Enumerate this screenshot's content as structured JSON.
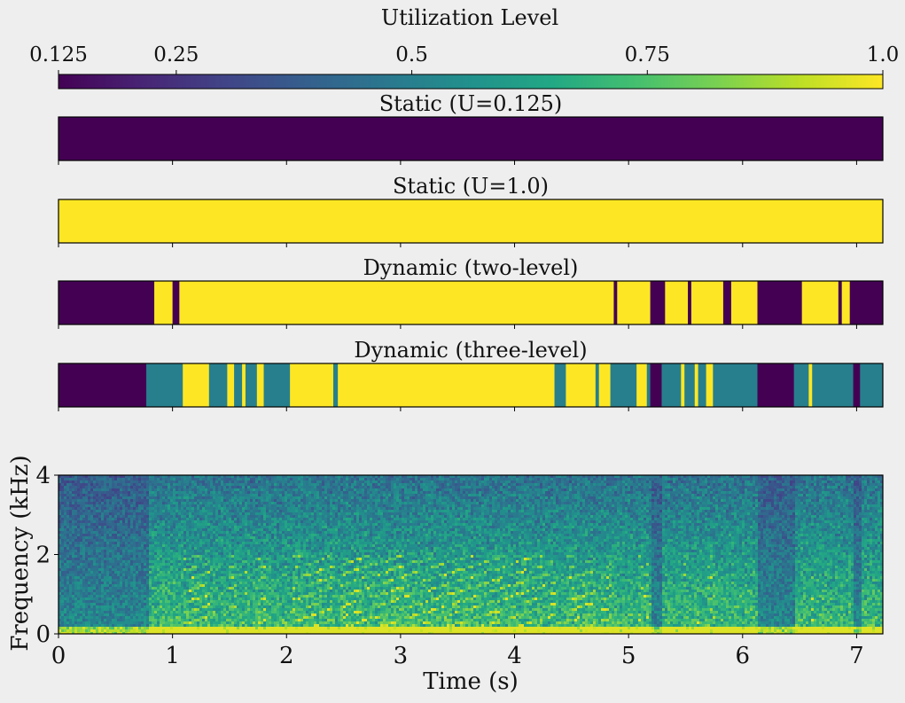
{
  "chart_data": [
    {
      "type": "colorbar",
      "title": "Utilization Level",
      "range": [
        0.125,
        1.0
      ],
      "ticks": [
        0.125,
        0.25,
        0.5,
        0.75,
        1.0
      ],
      "tick_labels": [
        "0.125",
        "0.25",
        "0.5",
        "0.75",
        "1.0"
      ],
      "colormap": "viridis"
    },
    {
      "type": "heatmap",
      "title": "Static (U=0.125)",
      "xlim": [
        0,
        7.23
      ],
      "segments": [
        {
          "start": 0,
          "end": 7.23,
          "value": 0.125
        }
      ]
    },
    {
      "type": "heatmap",
      "title": "Static (U=1.0)",
      "xlim": [
        0,
        7.23
      ],
      "segments": [
        {
          "start": 0,
          "end": 7.23,
          "value": 1.0
        }
      ]
    },
    {
      "type": "heatmap",
      "title": "Dynamic (two-level)",
      "xlim": [
        0,
        7.23
      ],
      "segments": [
        {
          "start": 0,
          "end": 0.84,
          "value": 0.125
        },
        {
          "start": 0.84,
          "end": 1.0,
          "value": 1.0
        },
        {
          "start": 1.0,
          "end": 1.06,
          "value": 0.125
        },
        {
          "start": 1.06,
          "end": 4.87,
          "value": 1.0
        },
        {
          "start": 4.87,
          "end": 4.9,
          "value": 0.125
        },
        {
          "start": 4.9,
          "end": 5.19,
          "value": 1.0
        },
        {
          "start": 5.19,
          "end": 5.32,
          "value": 0.125
        },
        {
          "start": 5.32,
          "end": 5.52,
          "value": 1.0
        },
        {
          "start": 5.52,
          "end": 5.55,
          "value": 0.125
        },
        {
          "start": 5.55,
          "end": 5.83,
          "value": 1.0
        },
        {
          "start": 5.83,
          "end": 5.9,
          "value": 0.125
        },
        {
          "start": 5.9,
          "end": 6.13,
          "value": 1.0
        },
        {
          "start": 6.13,
          "end": 6.52,
          "value": 0.125
        },
        {
          "start": 6.52,
          "end": 6.84,
          "value": 1.0
        },
        {
          "start": 6.84,
          "end": 6.87,
          "value": 0.125
        },
        {
          "start": 6.87,
          "end": 6.94,
          "value": 1.0
        },
        {
          "start": 6.94,
          "end": 7.23,
          "value": 0.125
        }
      ]
    },
    {
      "type": "heatmap",
      "title": "Dynamic (three-level)",
      "xlim": [
        0,
        7.23
      ],
      "segments": [
        {
          "start": 0,
          "end": 0.77,
          "value": 0.125
        },
        {
          "start": 0.77,
          "end": 1.09,
          "value": 0.5
        },
        {
          "start": 1.09,
          "end": 1.32,
          "value": 1.0
        },
        {
          "start": 1.32,
          "end": 1.48,
          "value": 0.5
        },
        {
          "start": 1.48,
          "end": 1.54,
          "value": 1.0
        },
        {
          "start": 1.54,
          "end": 1.61,
          "value": 0.5
        },
        {
          "start": 1.61,
          "end": 1.64,
          "value": 1.0
        },
        {
          "start": 1.64,
          "end": 1.74,
          "value": 0.5
        },
        {
          "start": 1.74,
          "end": 1.8,
          "value": 1.0
        },
        {
          "start": 1.8,
          "end": 2.03,
          "value": 0.5
        },
        {
          "start": 2.03,
          "end": 2.41,
          "value": 1.0
        },
        {
          "start": 2.41,
          "end": 2.45,
          "value": 0.5
        },
        {
          "start": 2.45,
          "end": 4.35,
          "value": 1.0
        },
        {
          "start": 4.35,
          "end": 4.45,
          "value": 0.5
        },
        {
          "start": 4.45,
          "end": 4.71,
          "value": 1.0
        },
        {
          "start": 4.71,
          "end": 4.74,
          "value": 0.5
        },
        {
          "start": 4.74,
          "end": 4.84,
          "value": 1.0
        },
        {
          "start": 4.84,
          "end": 5.07,
          "value": 0.5
        },
        {
          "start": 5.07,
          "end": 5.16,
          "value": 1.0
        },
        {
          "start": 5.16,
          "end": 5.19,
          "value": 0.5
        },
        {
          "start": 5.19,
          "end": 5.29,
          "value": 0.125
        },
        {
          "start": 5.29,
          "end": 5.46,
          "value": 0.5
        },
        {
          "start": 5.46,
          "end": 5.49,
          "value": 1.0
        },
        {
          "start": 5.49,
          "end": 5.58,
          "value": 0.5
        },
        {
          "start": 5.58,
          "end": 5.61,
          "value": 1.0
        },
        {
          "start": 5.61,
          "end": 5.68,
          "value": 0.5
        },
        {
          "start": 5.68,
          "end": 5.74,
          "value": 1.0
        },
        {
          "start": 5.74,
          "end": 6.13,
          "value": 0.5
        },
        {
          "start": 6.13,
          "end": 6.45,
          "value": 0.125
        },
        {
          "start": 6.45,
          "end": 6.58,
          "value": 0.5
        },
        {
          "start": 6.58,
          "end": 6.61,
          "value": 1.0
        },
        {
          "start": 6.61,
          "end": 6.97,
          "value": 0.5
        },
        {
          "start": 6.97,
          "end": 7.03,
          "value": 0.125
        },
        {
          "start": 7.03,
          "end": 7.23,
          "value": 0.5
        }
      ]
    },
    {
      "type": "heatmap",
      "subtype": "spectrogram",
      "xlabel": "Time (s)",
      "ylabel": "Frequency (kHz)",
      "xlim": [
        0,
        7.23
      ],
      "ylim": [
        0,
        4
      ],
      "xticks": [
        0,
        1,
        2,
        3,
        4,
        5,
        6,
        7
      ],
      "xtick_labels": [
        "0",
        "1",
        "2",
        "3",
        "4",
        "5",
        "6",
        "7"
      ],
      "yticks": [
        0,
        2,
        4
      ],
      "ytick_labels": [
        "0",
        "2",
        "4"
      ],
      "colormap": "viridis"
    }
  ],
  "colors": {
    "low": "#440154",
    "mid": "#287d8e",
    "high": "#fde725",
    "background": "#eeeeee"
  }
}
